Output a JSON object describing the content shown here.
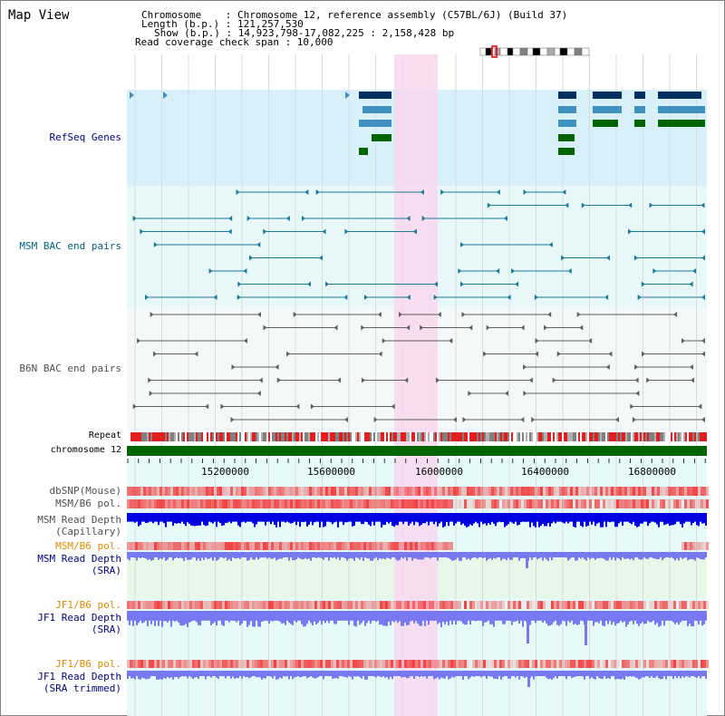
{
  "title": "Map View",
  "info": {
    "chromosome_line": "Chromosome    : Chromosome 12, reference assembly (C57BL/6J) (Build 37)",
    "length_line": "Length (b.p.) : 121,257,530",
    "show_line": "Show (b.p.) : 14,923,798-17,082,225 : 2,158,428 bp",
    "read_span_line": "Read coverage check span : 10,000"
  },
  "tracks": {
    "refseq": "RefSeq Genes",
    "msm_bac": "MSM BAC end pairs",
    "b6n_bac": "B6N BAC end pairs",
    "repeat": "Repeat",
    "chromosome": "chromosome 12",
    "dbsnp": "dbSNP(Mouse)",
    "msm_b6_pol_1": "MSM/B6 pol.",
    "msm_read_depth_cap_1": "MSM Read Depth",
    "msm_read_depth_cap_2": "(Capillary)",
    "msm_b6_pol_2": "MSM/B6 pol.",
    "msm_read_depth_sra_1": "MSM Read Depth",
    "msm_read_depth_sra_2": "(SRA)",
    "jf1_b6_pol_1": "JF1/B6 pol.",
    "jf1_read_depth_sra_1": "JF1 Read Depth",
    "jf1_read_depth_sra_2": "(SRA)",
    "jf1_b6_pol_2": "JF1/B6 pol.",
    "jf1_read_depth_trim_1": "JF1 Read Depth",
    "jf1_read_depth_trim_2": "(SRA trimmed)"
  },
  "axis_ticks": [
    "15200000",
    "15600000",
    "16000000",
    "16400000",
    "16800000"
  ],
  "colors": {
    "refseq_bg": "#d8f0fa",
    "bac_bg": "#e8f8f8",
    "highlight": "#f8d8f0",
    "chromosome_bar": "#006400",
    "depth_blue": "#0000e0",
    "depth_light_blue": "#7878f0",
    "pol_red": "#f04040",
    "label_blue": "#00008b",
    "label_teal": "#006080",
    "label_orange": "#e08a00"
  }
}
